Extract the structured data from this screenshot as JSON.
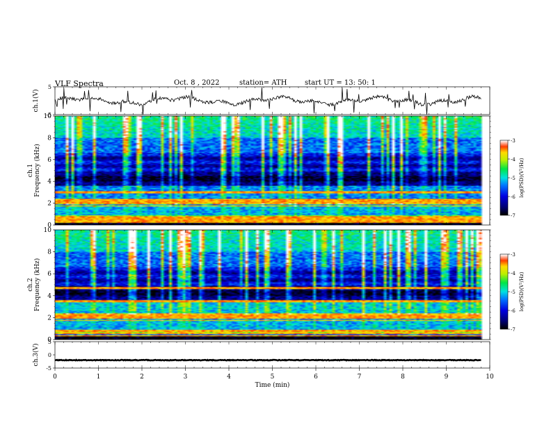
{
  "header": {
    "title": "VLF Spectra",
    "date": "Oct. 8 , 2022",
    "station": "station= ATH",
    "start_ut": "start UT = 13: 50: 1"
  },
  "chart_data": [
    {
      "type": "line",
      "ylabel": "ch.1(V)",
      "ylim": [
        -5,
        5
      ],
      "yticks": [
        "5",
        "-5"
      ],
      "xlim": [
        0,
        10
      ],
      "baseline": 0,
      "color": "#000000"
    },
    {
      "type": "heatmap",
      "ylabel_prefix": "ch.1",
      "ylabel": "Frequency (kHz)",
      "ylim": [
        0,
        10
      ],
      "yticks": [
        "0",
        "2",
        "4",
        "6",
        "8",
        "10"
      ],
      "xlim": [
        0,
        10
      ],
      "data_end_min": 9.8,
      "colorbar": {
        "label": "log(PSD)(V²/Hz)",
        "range": [
          -7,
          -3
        ],
        "ticks": [
          "-3",
          "-4",
          "-5",
          "-6",
          "-7"
        ]
      }
    },
    {
      "type": "heatmap",
      "ylabel_prefix": "ch.2",
      "ylabel": "Frequency (kHz)",
      "ylim": [
        0,
        10
      ],
      "yticks": [
        "0",
        "2",
        "4",
        "6",
        "8",
        "10"
      ],
      "xlim": [
        0,
        10
      ],
      "data_end_min": 9.8,
      "colorbar": {
        "label": "log(PSD)(V²/Hz)",
        "range": [
          -7,
          -3
        ],
        "ticks": [
          "-3",
          "-4",
          "-5",
          "-6",
          "-7"
        ]
      }
    },
    {
      "type": "line",
      "ylabel": "ch.3(V)",
      "ylim": [
        -5,
        5
      ],
      "yticks": [
        "5",
        "0",
        "-5"
      ],
      "xlim": [
        0,
        10
      ],
      "baseline": -2,
      "color": "#000000"
    }
  ],
  "x_axis": {
    "label": "Time (min)",
    "ticks": [
      "0",
      "1",
      "2",
      "3",
      "4",
      "5",
      "6",
      "7",
      "8",
      "9",
      "10"
    ]
  }
}
